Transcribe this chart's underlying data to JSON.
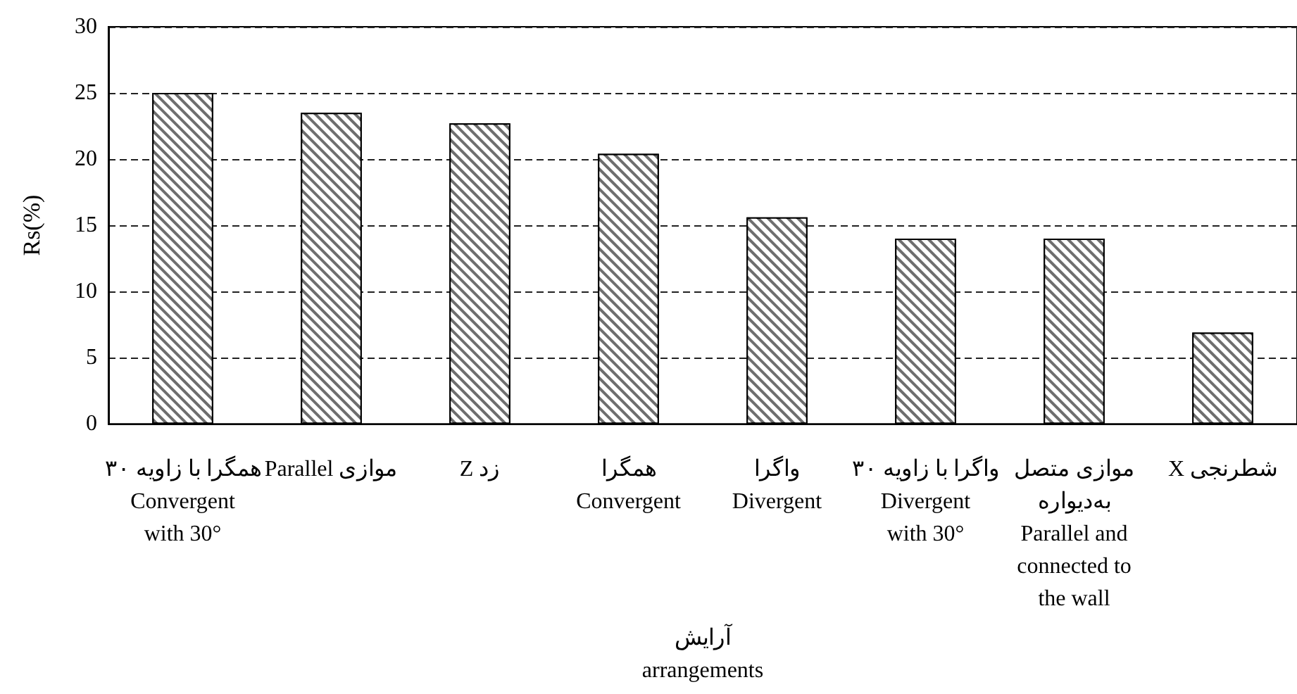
{
  "chart_data": {
    "type": "bar",
    "xlabel": "آرایش\narrangements",
    "ylabel": "Rs(%)",
    "categories": [
      "همگرا با زاویه ۳۰\nConvergent\nwith 30°",
      "موازی Parallel",
      "زد Z",
      "همگرا\nConvergent",
      "واگرا\nDivergent",
      "واگرا با زاویه ۳۰\nDivergent\nwith 30°",
      "موازی متصل\nبه‌دیواره\nParallel and\nconnected to\nthe wall",
      "شطرنجی X"
    ],
    "values": [
      25,
      23.5,
      22.7,
      20.4,
      15.6,
      14,
      14,
      6.9
    ],
    "color": "#6e6e6e",
    "ylim": [
      0,
      30
    ],
    "yticks": [
      0,
      5,
      10,
      15,
      20,
      25,
      30
    ],
    "grid": "y"
  }
}
